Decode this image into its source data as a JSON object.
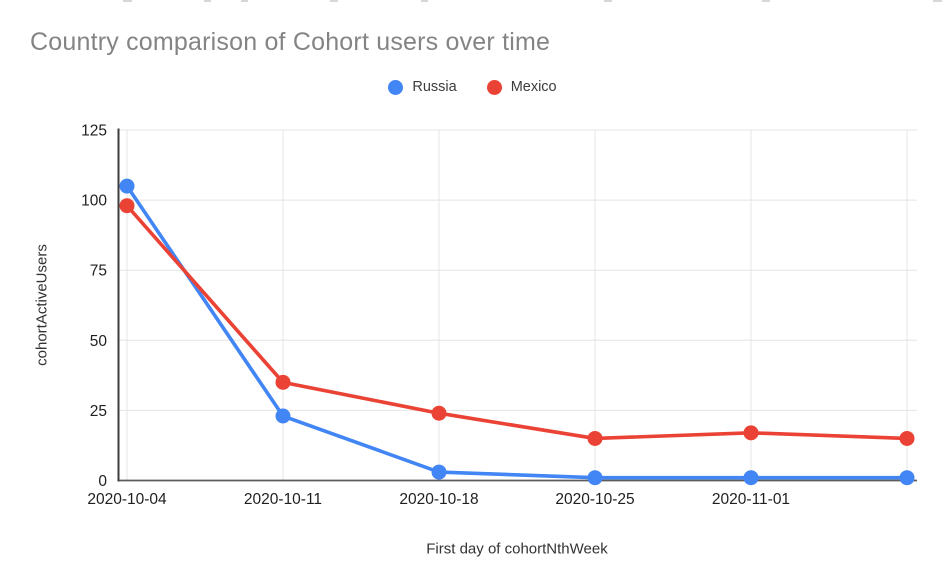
{
  "chart_data": {
    "type": "line",
    "title": "Country comparison of Cohort users over time",
    "xlabel": "First day of cohortNthWeek",
    "ylabel": "cohortActiveUsers",
    "x_tick_labels": [
      "2020-10-04",
      "2020-10-11",
      "2020-10-18",
      "2020-10-25",
      "2020-11-01",
      ""
    ],
    "yticks": [
      0,
      25,
      50,
      75,
      100,
      125
    ],
    "ylim": [
      0,
      125
    ],
    "grid": true,
    "legend_position": "top-center",
    "series": [
      {
        "name": "Russia",
        "color": "#4285F4",
        "values": [
          105,
          23,
          3,
          1,
          1,
          1
        ]
      },
      {
        "name": "Mexico",
        "color": "#EA4335",
        "values": [
          98,
          35,
          24,
          15,
          17,
          15
        ]
      }
    ],
    "colors": {
      "title_text": "#848484",
      "tick_text": "#1f1f1f",
      "axis_text": "#333333",
      "gridline": "#e4e4e4",
      "axis_line": "#3d3d3d",
      "baseline": "#5c5c5c"
    }
  }
}
